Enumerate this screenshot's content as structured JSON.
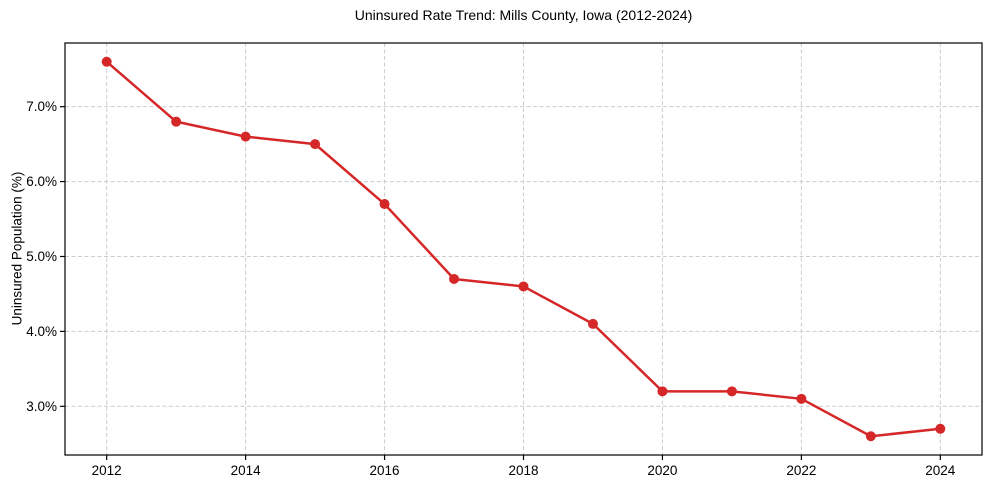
{
  "chart_data": {
    "type": "line",
    "title": "Uninsured Rate Trend: Mills County, Iowa (2012-2024)",
    "xlabel": "",
    "ylabel": "Uninsured Population (%)",
    "x": [
      2012,
      2013,
      2014,
      2015,
      2016,
      2017,
      2018,
      2019,
      2020,
      2021,
      2022,
      2023,
      2024
    ],
    "values": [
      7.6,
      6.8,
      6.6,
      6.5,
      5.7,
      4.7,
      4.6,
      4.1,
      3.2,
      3.2,
      3.1,
      2.6,
      2.7
    ],
    "x_ticks": [
      2012,
      2014,
      2016,
      2018,
      2020,
      2022,
      2024
    ],
    "x_tick_labels": [
      "2012",
      "2014",
      "2016",
      "2018",
      "2020",
      "2022",
      "2024"
    ],
    "y_ticks": [
      3,
      4,
      5,
      6,
      7
    ],
    "y_tick_labels": [
      "3.0%",
      "4.0%",
      "5.0%",
      "6.0%",
      "7.0%"
    ],
    "xlim": [
      2011.4,
      2024.6
    ],
    "ylim": [
      2.35,
      7.85
    ],
    "grid": true,
    "grid_linestyle": "dashed",
    "legend": false,
    "line_color": "#d62728",
    "marker": "circle",
    "marker_size": 5,
    "line_width": 2.5,
    "grid_color": "#cccccc",
    "axis_color": "#000000",
    "text_color": "#000000",
    "background": "#ffffff"
  }
}
